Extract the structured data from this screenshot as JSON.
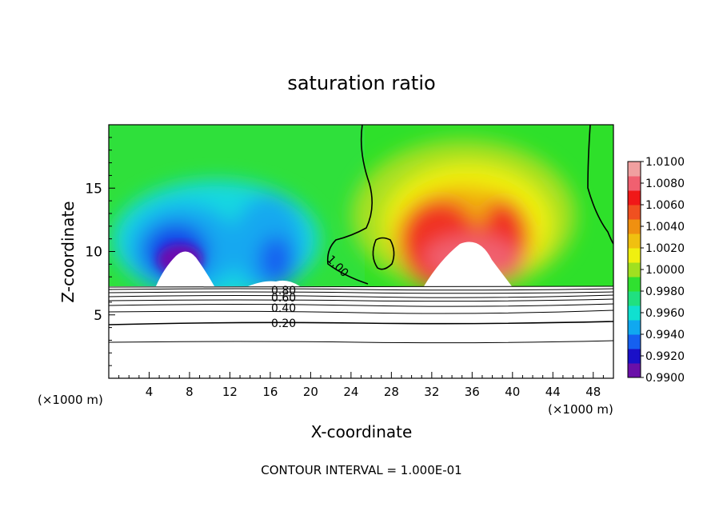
{
  "chart_data": {
    "type": "heatmap",
    "title": "saturation ratio",
    "xlabel": "X-coordinate",
    "ylabel": "Z-coordinate",
    "x_unit_label_left": "(×1000 m)",
    "x_unit_label_right": "(×1000 m)",
    "xlim": [
      0,
      50
    ],
    "ylim": [
      0,
      20
    ],
    "x_ticks": [
      4,
      8,
      12,
      16,
      20,
      24,
      28,
      32,
      36,
      40,
      44,
      48
    ],
    "y_ticks": [
      5,
      10,
      15
    ],
    "colorbar": {
      "min": 0.99,
      "max": 1.01,
      "ticks": [
        "1.0100",
        "1.0080",
        "1.0060",
        "1.0040",
        "1.0020",
        "1.0000",
        "0.9980",
        "0.9960",
        "0.9940",
        "0.9920",
        "0.9900"
      ],
      "colors": [
        "#6a0fa8",
        "#1a10c8",
        "#1560f0",
        "#10a8f0",
        "#10e0d0",
        "#20e080",
        "#30e030",
        "#a0e020",
        "#f0f010",
        "#f0c010",
        "#f09010",
        "#f05020",
        "#f01818",
        "#f06070",
        "#f0a0a0"
      ]
    },
    "contour_labels": [
      "1.00",
      "0.80",
      "0.60",
      "0.40",
      "0.20"
    ],
    "footer": "CONTOUR INTERVAL = 1.000E-01"
  }
}
